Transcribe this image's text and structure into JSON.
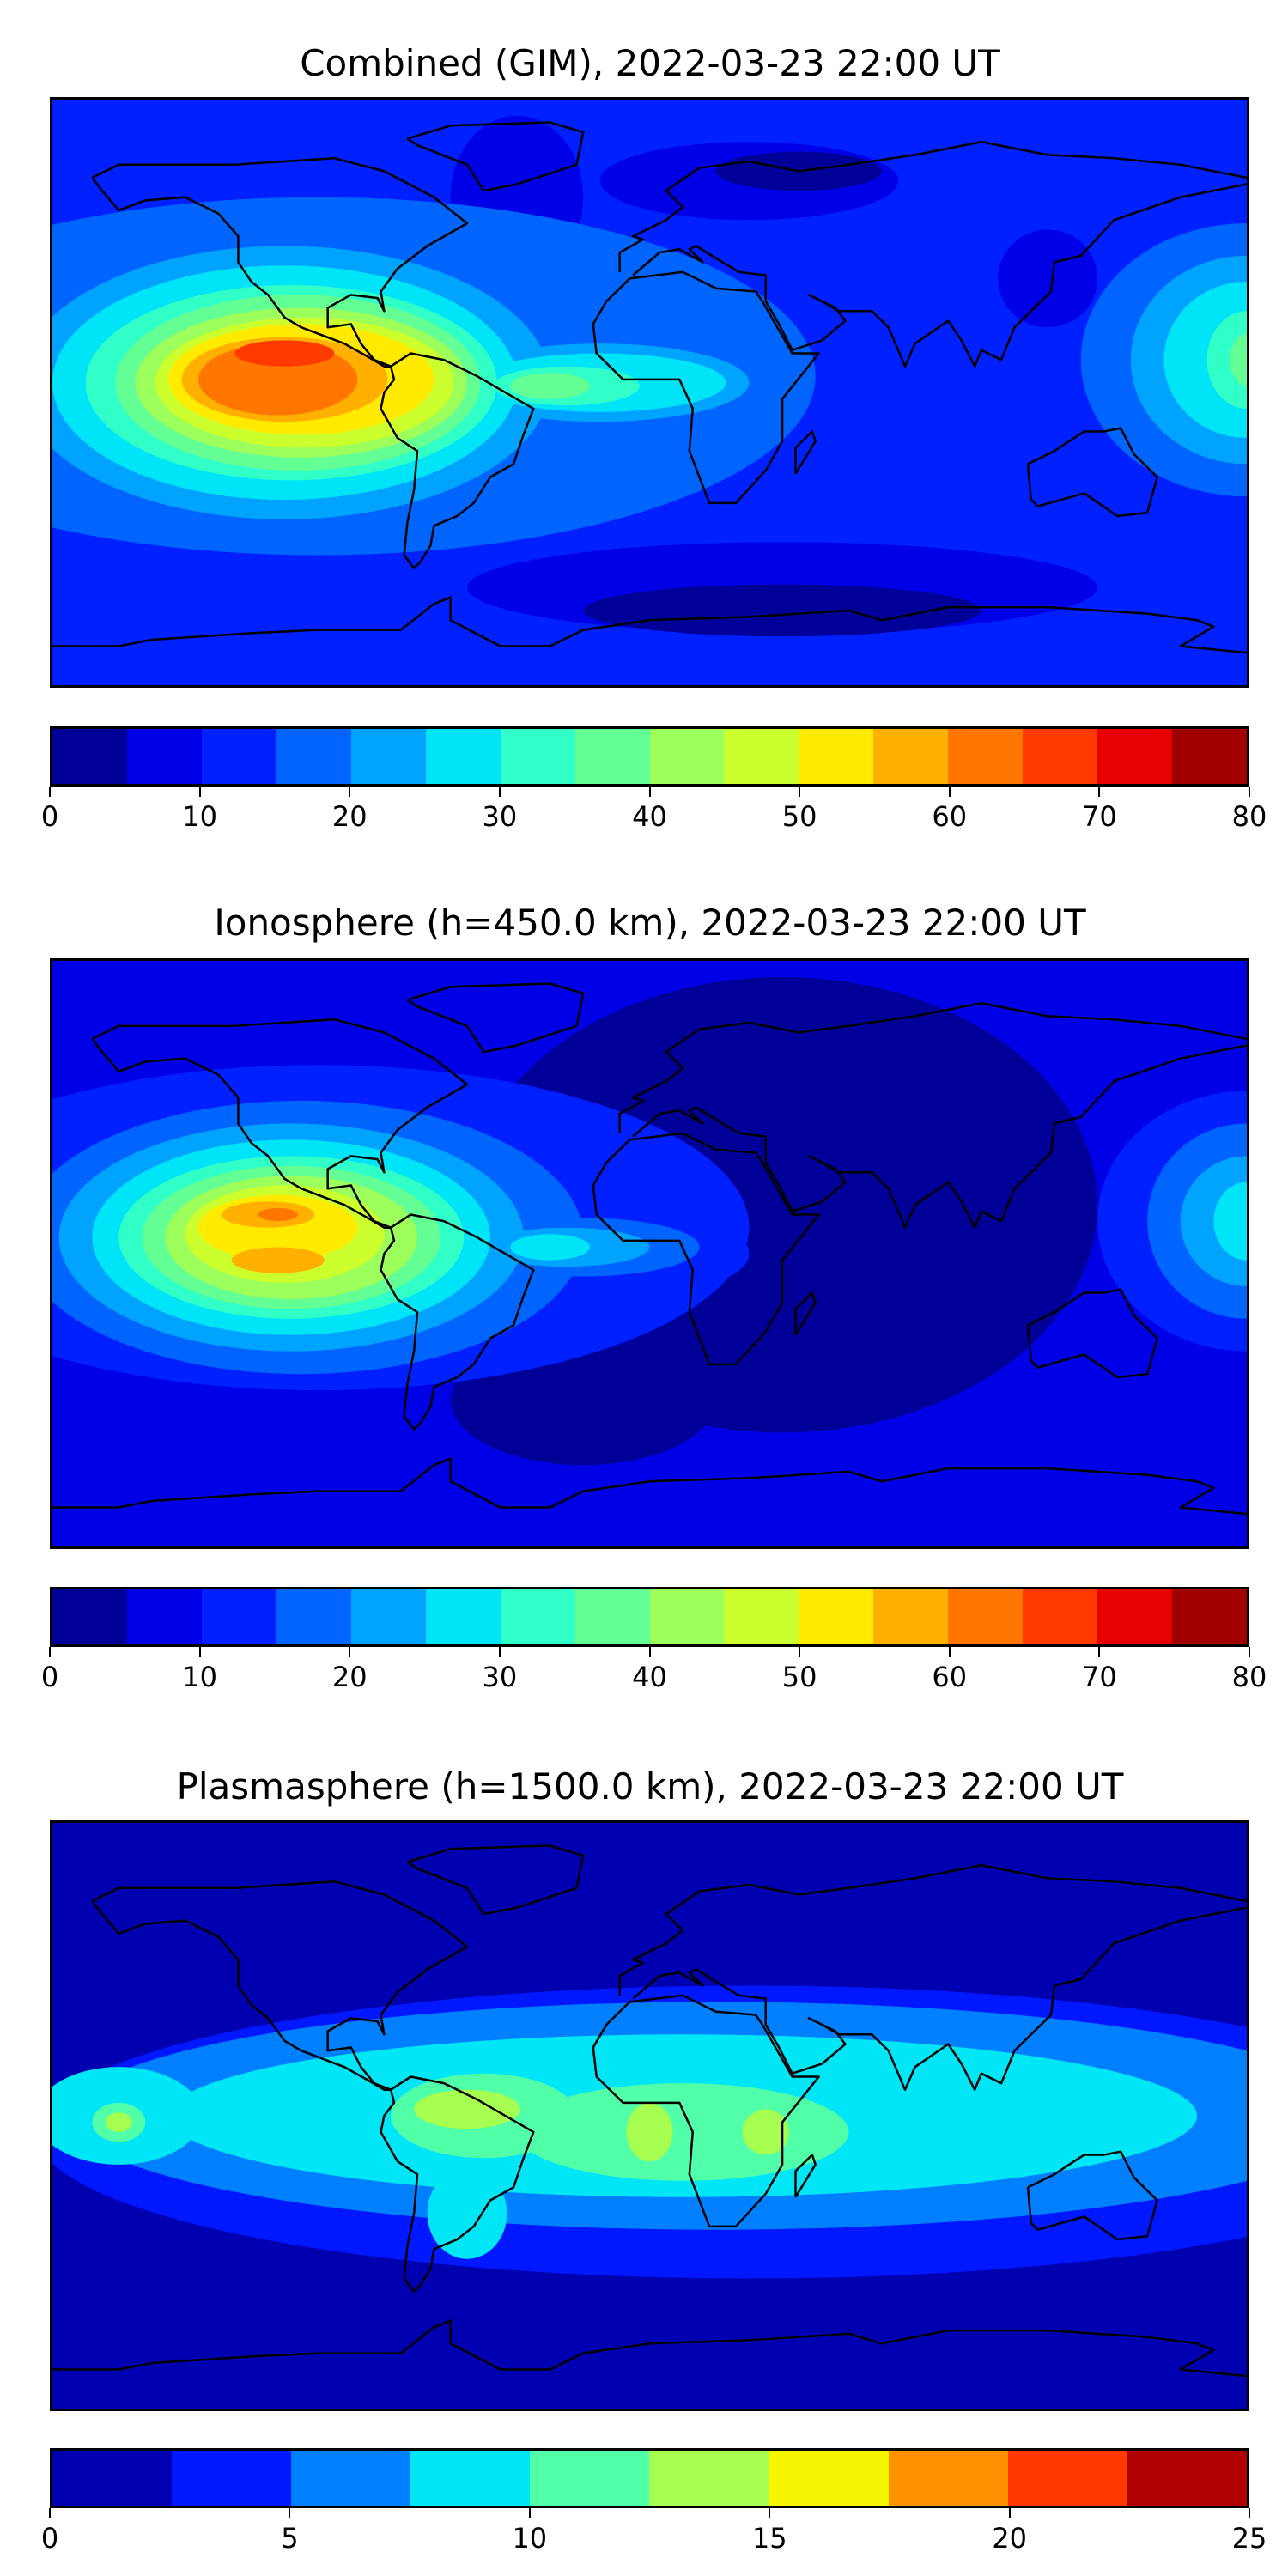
{
  "chart_data": [
    {
      "type": "heatmap",
      "title": "Combined (GIM), 2022-03-23 22:00 UT",
      "projection": "world map, longitude -180..180, latitude -90..90",
      "colorbar": {
        "levels": [
          0,
          5,
          10,
          15,
          20,
          25,
          30,
          35,
          40,
          45,
          50,
          55,
          60,
          65,
          70,
          75,
          80
        ],
        "ticks": [
          "0",
          "10",
          "20",
          "30",
          "40",
          "50",
          "60",
          "70",
          "80"
        ],
        "tick_values": [
          0,
          10,
          20,
          30,
          40,
          50,
          60,
          70,
          80
        ],
        "colors": [
          "#000098",
          "#0000e6",
          "#0020ff",
          "#0064ff",
          "#00a4ff",
          "#00e4f8",
          "#30ffc8",
          "#64ff94",
          "#9cff5c",
          "#ccff2e",
          "#ffea00",
          "#ffb000",
          "#ff7600",
          "#ff3a00",
          "#e60000",
          "#a00000"
        ]
      },
      "max_region": "eastern Pacific west of South America, peak 65-70"
    },
    {
      "type": "heatmap",
      "title": "Ionosphere  (h=450.0 km), 2022-03-23 22:00 UT",
      "projection": "world map, longitude -180..180, latitude -90..90",
      "colorbar": {
        "levels": [
          0,
          5,
          10,
          15,
          20,
          25,
          30,
          35,
          40,
          45,
          50,
          55,
          60,
          65,
          70,
          75,
          80
        ],
        "ticks": [
          "0",
          "10",
          "20",
          "30",
          "40",
          "50",
          "60",
          "70",
          "80"
        ],
        "tick_values": [
          0,
          10,
          20,
          30,
          40,
          50,
          60,
          70,
          80
        ],
        "colors": [
          "#000098",
          "#0000e6",
          "#0020ff",
          "#0064ff",
          "#00a4ff",
          "#00e4f8",
          "#30ffc8",
          "#64ff94",
          "#9cff5c",
          "#ccff2e",
          "#ffea00",
          "#ffb000",
          "#ff7600",
          "#ff3a00",
          "#e60000",
          "#a00000"
        ]
      },
      "max_region": "eastern Pacific west of South America, peak 60-65"
    },
    {
      "type": "heatmap",
      "title": "Plasmasphere (h=1500.0 km), 2022-03-23 22:00 UT",
      "projection": "world map, longitude -180..180, latitude -90..90",
      "colorbar": {
        "levels": [
          0,
          2.5,
          5,
          7.5,
          10,
          12.5,
          15,
          17.5,
          20,
          22.5,
          25
        ],
        "ticks": [
          "0",
          "5",
          "10",
          "15",
          "20",
          "25"
        ],
        "tick_values": [
          0,
          5,
          10,
          15,
          20,
          25
        ],
        "colors": [
          "#0000b0",
          "#0018ff",
          "#0080ff",
          "#00e6f6",
          "#50ffa8",
          "#a6ff50",
          "#f6f600",
          "#ff9000",
          "#ff3800",
          "#b00000"
        ]
      },
      "max_region": "equatorial band over South America and Africa, peak 12.5-15"
    }
  ]
}
